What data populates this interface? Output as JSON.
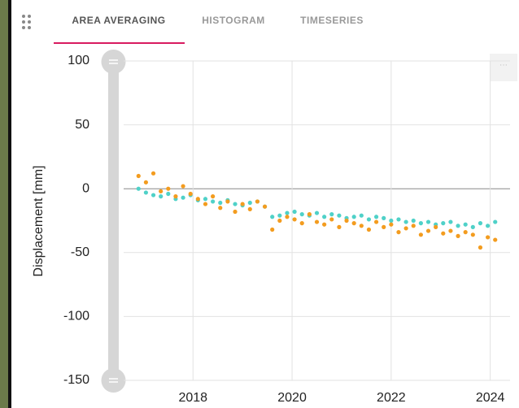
{
  "tabs": [
    "AREA AVERAGING",
    "HISTOGRAM",
    "TIMESERIES"
  ],
  "chart_data": {
    "type": "scatter",
    "y_label": "Displacement [mm]",
    "x": [
      2016.9,
      2017.05,
      2017.2,
      2017.35,
      2017.5,
      2017.65,
      2017.8,
      2017.95,
      2018.1,
      2018.25,
      2018.4,
      2018.55,
      2018.7,
      2018.85,
      2019,
      2019.15,
      2019.3,
      2019.45,
      2019.6,
      2019.75,
      2019.9,
      2020.05,
      2020.2,
      2020.35,
      2020.5,
      2020.65,
      2020.8,
      2020.95,
      2021.1,
      2021.25,
      2021.4,
      2021.55,
      2021.7,
      2021.85,
      2022,
      2022.15,
      2022.3,
      2022.45,
      2022.6,
      2022.75,
      2022.9,
      2023.05,
      2023.2,
      2023.35,
      2023.5,
      2023.65,
      2023.8,
      2023.95,
      2024.1
    ],
    "series": [
      {
        "color": "#4fd1c8",
        "values": [
          0,
          -3,
          -5,
          -6,
          -4,
          -8,
          -7,
          -5,
          -9,
          -8,
          -10,
          -11,
          -9,
          -12,
          -13,
          -11,
          -10,
          -14,
          -22,
          -21,
          -19,
          -18,
          -20,
          -21,
          -19,
          -22,
          -20,
          -21,
          -23,
          -22,
          -21,
          -24,
          -22,
          -23,
          -25,
          -24,
          -26,
          -25,
          -27,
          -26,
          -28,
          -27,
          -26,
          -29,
          -28,
          -30,
          -27,
          -29,
          -26
        ]
      },
      {
        "color": "#f39c1f",
        "values": [
          10,
          5,
          12,
          -2,
          0,
          -6,
          2,
          -4,
          -8,
          -12,
          -6,
          -15,
          -10,
          -18,
          -12,
          -16,
          -10,
          -14,
          -32,
          -25,
          -22,
          -24,
          -27,
          -20,
          -26,
          -28,
          -24,
          -30,
          -25,
          -27,
          -29,
          -32,
          -26,
          -30,
          -28,
          -34,
          -31,
          -29,
          -36,
          -33,
          -30,
          -35,
          -33,
          -37,
          -34,
          -36,
          -46,
          -38,
          -40
        ]
      }
    ],
    "xlim": [
      2016.6,
      2024.4
    ],
    "xticks": [
      2018,
      2020,
      2022,
      2024
    ],
    "ylim": [
      -150,
      100
    ],
    "yticks": [
      100,
      50,
      0,
      -50,
      -100,
      -150
    ],
    "grid": true
  }
}
